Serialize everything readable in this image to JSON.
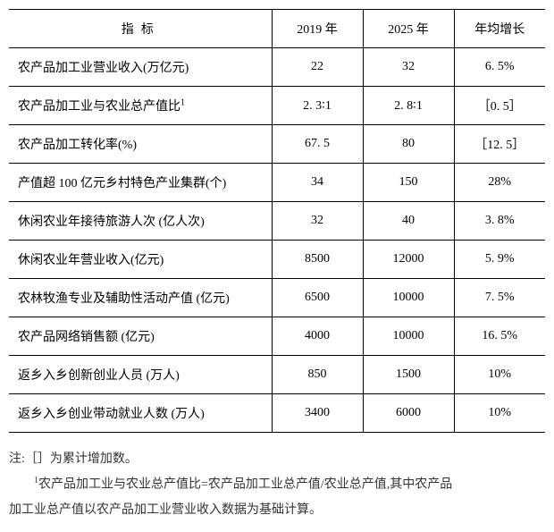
{
  "table": {
    "columns": [
      "指标",
      "2019 年",
      "2025 年",
      "年均增长"
    ],
    "rows": [
      {
        "label": "农产品加工业营业收入(万亿元)",
        "y2019": "22",
        "y2025": "32",
        "growth": "6. 5%"
      },
      {
        "label": "农产品加工业与农业总产值比",
        "sup": "1",
        "y2019": "2. 3∶1",
        "y2025": "2. 8∶1",
        "growth": "［0. 5］"
      },
      {
        "label": "农产品加工转化率(%)",
        "y2019": "67. 5",
        "y2025": "80",
        "growth": "［12. 5］"
      },
      {
        "label": "产值超 100 亿元乡村特色产业集群(个)",
        "y2019": "34",
        "y2025": "150",
        "growth": "28%"
      },
      {
        "label": "休闲农业年接待旅游人次 (亿人次)",
        "y2019": "32",
        "y2025": "40",
        "growth": "3. 8%"
      },
      {
        "label": "休闲农业年营业收入(亿元)",
        "y2019": "8500",
        "y2025": "12000",
        "growth": "5. 9%"
      },
      {
        "label": "农林牧渔专业及辅助性活动产值 (亿元)",
        "y2019": "6500",
        "y2025": "10000",
        "growth": "7. 5%"
      },
      {
        "label": "农产品网络销售额 (亿元)",
        "y2019": "4000",
        "y2025": "10000",
        "growth": "16. 5%"
      },
      {
        "label": "返乡入乡创新创业人员 (万人)",
        "y2019": "850",
        "y2025": "1500",
        "growth": "10%"
      },
      {
        "label": "返乡入乡创业带动就业人数 (万人)",
        "y2019": "3400",
        "y2025": "6000",
        "growth": "10%"
      }
    ]
  },
  "notes": {
    "note1": "注:［］为累计增加数。",
    "note2_pre": "1",
    "note2": "农产品加工业与农业总产值比=农产品加工业总产值/农业总产值,其中农产品",
    "note3": "加工业总产值以农产品加工业营业收入数据为基础计算。"
  }
}
